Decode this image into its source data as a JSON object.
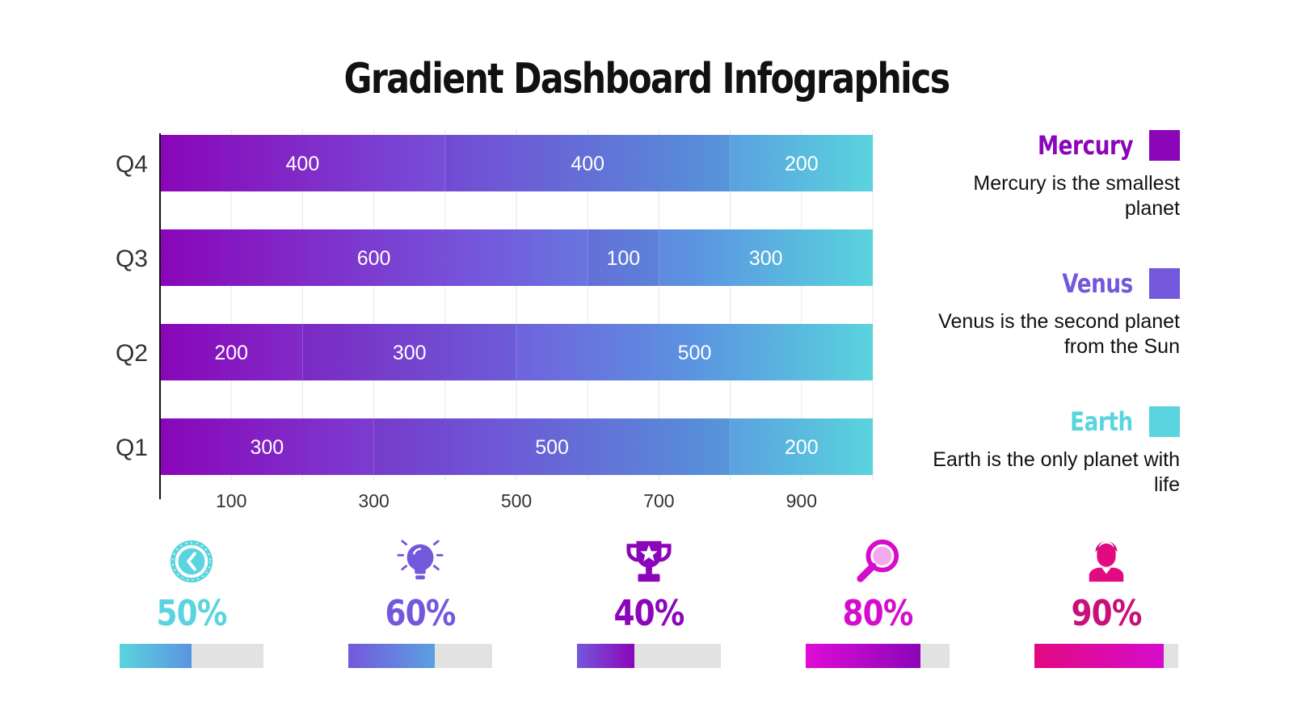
{
  "title": "Gradient Dashboard Infographics",
  "colors": {
    "mercury": "#8a06b8",
    "venus": "#7458dc",
    "earth": "#5ad4de",
    "magenta": "#d60ccc",
    "pink": "#e20a80",
    "grid": "#e6e6e6",
    "axis": "#111111"
  },
  "chart_data": {
    "type": "bar",
    "orientation": "horizontal",
    "stacked": true,
    "categories": [
      "Q4",
      "Q3",
      "Q2",
      "Q1"
    ],
    "series": [
      {
        "name": "Mercury",
        "values": [
          400,
          600,
          200,
          300
        ]
      },
      {
        "name": "Venus",
        "values": [
          400,
          100,
          300,
          500
        ]
      },
      {
        "name": "Earth",
        "values": [
          200,
          300,
          500,
          200
        ]
      }
    ],
    "x_ticks": [
      100,
      300,
      500,
      700,
      900
    ],
    "xlim": [
      0,
      1000
    ],
    "grid": true,
    "legend_position": "right"
  },
  "legend": [
    {
      "name": "Mercury",
      "desc": "Mercury is the smallest planet",
      "color": "#8a06b8"
    },
    {
      "name": "Venus",
      "desc": "Venus is the second planet from the Sun",
      "color": "#7458dc"
    },
    {
      "name": "Earth",
      "desc": "Earth is the only planet with life",
      "color": "#5ad4de"
    }
  ],
  "kpis": [
    {
      "icon": "clock-icon",
      "value": "50%",
      "fraction": 0.5,
      "color": "#5ad4de",
      "fill_from": "#5ad4de",
      "fill_to": "#5b94e0"
    },
    {
      "icon": "lightbulb-icon",
      "value": "60%",
      "fraction": 0.6,
      "color": "#7458dc",
      "fill_from": "#7458dc",
      "fill_to": "#5aa0e0"
    },
    {
      "icon": "trophy-icon",
      "value": "40%",
      "fraction": 0.4,
      "color": "#8a06b8",
      "fill_from": "#7458dc",
      "fill_to": "#8a06b8"
    },
    {
      "icon": "magnifier-icon",
      "value": "80%",
      "fraction": 0.8,
      "color": "#d60ccc",
      "fill_from": "#e00cd6",
      "fill_to": "#8a06b8"
    },
    {
      "icon": "user-icon",
      "value": "90%",
      "fraction": 0.9,
      "color": "#c8107a",
      "fill_from": "#e20a80",
      "fill_to": "#d60ccc"
    }
  ]
}
